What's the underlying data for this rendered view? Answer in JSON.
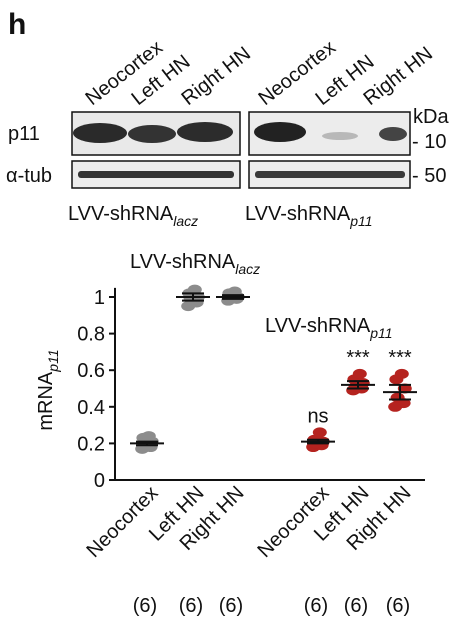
{
  "panel_label": "h",
  "blot": {
    "lanes": [
      "Neocortex",
      "Left HN",
      "Right HN",
      "Neocortex",
      "Left HN",
      "Right HN"
    ],
    "rows": [
      "p11",
      "α-tub"
    ],
    "unit": "kDa",
    "markers": [
      "- 10",
      "- 50"
    ],
    "groups": [
      {
        "label": "LVV-shRNA",
        "subscript": "lacz"
      },
      {
        "label": "LVV-shRNA",
        "subscript": "p11"
      }
    ]
  },
  "chart_data": {
    "type": "dot",
    "y_label": "mRNA",
    "y_label_subscript": "p11",
    "categories": [
      "Neocortex",
      "Left HN",
      "Right HN",
      "Neocortex",
      "Left HN",
      "Right HN"
    ],
    "colors": [
      "#8c8c8c",
      "#8c8c8c",
      "#8c8c8c",
      "#b5231f",
      "#b5231f",
      "#b5231f"
    ],
    "values": [
      0.2,
      1.0,
      1.0,
      0.21,
      0.52,
      0.48
    ],
    "errors": [
      0.01,
      0.02,
      0.01,
      0.01,
      0.02,
      0.04
    ],
    "points": [
      [
        0.17,
        0.18,
        0.19,
        0.21,
        0.23,
        0.24
      ],
      [
        0.95,
        0.97,
        0.99,
        1.0,
        1.02,
        1.04
      ],
      [
        0.98,
        0.99,
        1.0,
        1.0,
        1.02,
        1.03
      ],
      [
        0.18,
        0.19,
        0.2,
        0.21,
        0.22,
        0.26
      ],
      [
        0.49,
        0.5,
        0.51,
        0.53,
        0.55,
        0.58
      ],
      [
        0.4,
        0.42,
        0.45,
        0.5,
        0.55,
        0.58
      ]
    ],
    "significance": [
      null,
      null,
      null,
      "ns",
      "***",
      "***"
    ],
    "n_labels": [
      "(6)",
      "(6)",
      "(6)",
      "(6)",
      "(6)",
      "(6)"
    ],
    "annotations": [
      {
        "label": "LVV-shRNA",
        "subscript": "lacz"
      },
      {
        "label": "LVV-shRNA",
        "subscript": "p11"
      }
    ],
    "ylim": [
      0,
      1.05
    ],
    "yticks": [
      0,
      0.2,
      0.4,
      0.6,
      0.8,
      1
    ]
  }
}
